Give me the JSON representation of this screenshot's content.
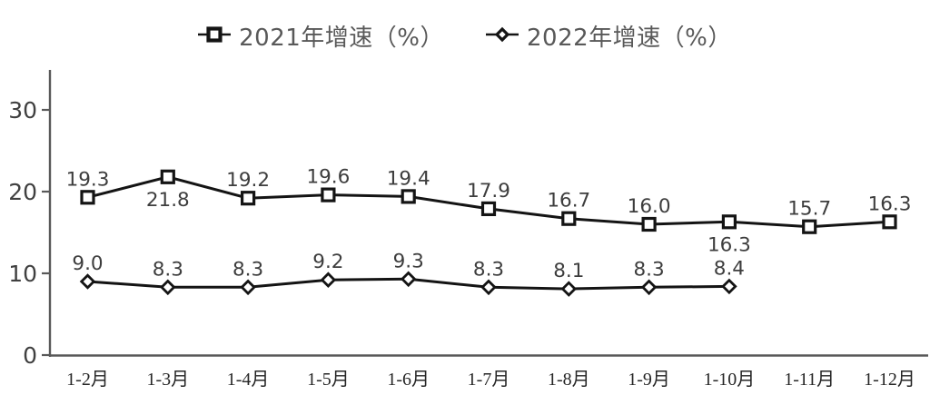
{
  "chart_data": {
    "type": "line",
    "title": "",
    "xlabel": "",
    "ylabel": "",
    "grid": false,
    "legend_position": "top-center",
    "categories": [
      "1-2月",
      "1-3月",
      "1-4月",
      "1-5月",
      "1-6月",
      "1-7月",
      "1-8月",
      "1-9月",
      "1-10月",
      "1-11月",
      "1-12月"
    ],
    "series": [
      {
        "name": "2021年增速（%）",
        "marker": "square",
        "values": [
          19.3,
          21.8,
          19.2,
          19.6,
          19.4,
          17.9,
          16.7,
          16.0,
          16.3,
          15.7,
          16.3
        ],
        "labels": [
          "19.3",
          "21.8",
          "19.2",
          "19.6",
          "19.4",
          "17.9",
          "16.7",
          "16.0",
          "16.3",
          "15.7",
          "16.3"
        ],
        "label_below_indices": [
          1,
          8
        ]
      },
      {
        "name": "2022年增速（%）",
        "marker": "diamond",
        "values": [
          9.0,
          8.3,
          8.3,
          9.2,
          9.3,
          8.3,
          8.1,
          8.3,
          8.4
        ],
        "labels": [
          "9.0",
          "8.3",
          "8.3",
          "9.2",
          "9.3",
          "8.3",
          "8.1",
          "8.3",
          "8.4"
        ],
        "label_below_indices": []
      }
    ],
    "ylim": [
      0,
      35
    ],
    "yticks": [
      0,
      10,
      20,
      30
    ],
    "ytick_labels": [
      "0",
      "10",
      "20",
      "30"
    ],
    "colors": {
      "line": "#141414",
      "marker_fill": "#ffffff",
      "axis": "#595959",
      "tick_text": "#404040",
      "xtick_text": "#262626",
      "label_text": "#3d3d3d",
      "legend_text": "#595959"
    }
  }
}
